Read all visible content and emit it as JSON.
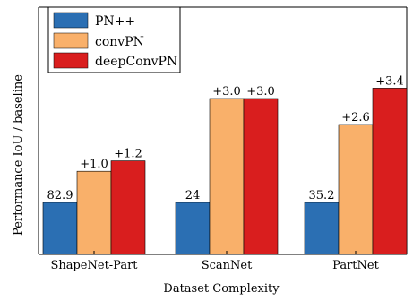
{
  "chart_data": {
    "type": "bar",
    "title": "",
    "xlabel": "Dataset Complexity",
    "ylabel": "Performance IoU / baseline",
    "categories": [
      "ShapeNet-Part",
      "ScanNet",
      "PartNet"
    ],
    "series": [
      {
        "name": "PN++",
        "color": "#2b6fb3",
        "bar_labels": [
          "82.9",
          "24",
          "35.2"
        ]
      },
      {
        "name": "convPN",
        "color": "#f9b06a",
        "bar_labels": [
          "+1.0",
          "+3.0",
          "+2.6"
        ]
      },
      {
        "name": "deepConvPN",
        "color": "#d91e1e",
        "bar_labels": [
          "+1.2",
          "+3.0",
          "+3.4"
        ]
      }
    ],
    "relative_heights": [
      [
        1.0,
        1.6,
        1.8
      ],
      [
        1.0,
        3.0,
        3.0
      ],
      [
        1.0,
        2.5,
        3.2
      ]
    ],
    "legend_position": "top-left",
    "grid": false
  }
}
